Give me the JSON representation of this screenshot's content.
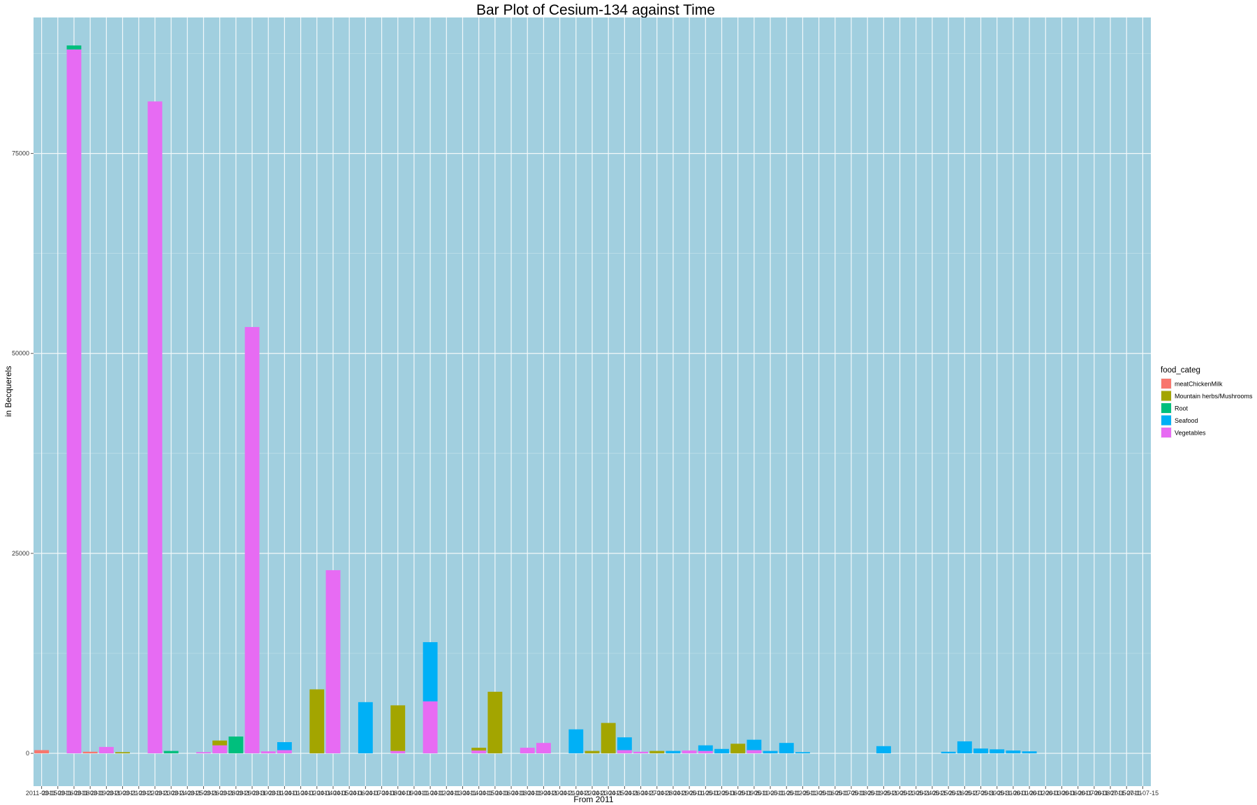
{
  "chart_data": {
    "type": "bar",
    "stacked": true,
    "title": "Bar Plot of Cesium-134 against Time",
    "xlabel": "From 2011",
    "ylabel": "in Becquerels",
    "ylim": [
      -4100,
      92000
    ],
    "y_ticks": [
      0,
      25000,
      50000,
      75000
    ],
    "grid": true,
    "legend_position": "right",
    "legend_title": "food_categ",
    "colors": {
      "meatChickenMilk": "#F8766D",
      "Mountain herbs/Mushrooms": "#A3A500",
      "Root": "#00BF7D",
      "Seafood": "#00B0F6",
      "Vegetables": "#E76BF3"
    },
    "x_tick_labels": [
      "2011-03-15",
      "2011-03-16",
      "2011-03-18",
      "2011-03-19",
      "2011-03-20",
      "2011-03-21",
      "2011-03-22",
      "2011-03-23",
      "2011-03-24",
      "2011-03-25",
      "2011-03-26",
      "2011-03-28",
      "2011-03-29",
      "2011-03-30",
      "2011-03-31",
      "2011-04-01",
      "2011-04-02",
      "2011-04-04",
      "2011-04-05",
      "2011-04-06",
      "2011-04-07",
      "2011-04-08",
      "2011-04-09",
      "2011-04-11",
      "2011-04-12",
      "2011-04-13",
      "2011-04-14",
      "2011-04-15",
      "2011-04-16",
      "2011-04-18",
      "2011-04-19",
      "2011-04-20",
      "2011-04-21",
      "2011-04-22",
      "2011-04-23",
      "2011-04-25",
      "2011-04-26",
      "2011-04-27",
      "2011-04-28",
      "2011-04-29",
      "2011-05-01",
      "2011-05-02",
      "2011-05-06",
      "2011-05-09",
      "2011-05-10",
      "2011-05-11",
      "2011-05-12",
      "2011-05-13",
      "2011-05-16",
      "2011-05-17",
      "2011-05-18",
      "2011-05-19",
      "2011-05-20",
      "2011-05-23",
      "2011-05-24",
      "2011-05-25",
      "2011-05-26",
      "2011-05-27",
      "2011-05-30",
      "2011-05-31",
      "2011-06-01",
      "2011-06-02",
      "2011-06-03",
      "2011-06-06",
      "2011-06-07",
      "2011-06-08",
      "2011-07-05",
      "2011-07-11",
      "2011-07-15"
    ],
    "categories": [
      "2011-03-15",
      "2011-03-16",
      "2011-03-18",
      "2011-03-19",
      "2011-03-20",
      "2011-03-21",
      "2011-03-22",
      "2011-03-23",
      "2011-03-24",
      "2011-03-25",
      "2011-03-26",
      "2011-03-28",
      "2011-03-29",
      "2011-03-30",
      "2011-03-31",
      "2011-04-01",
      "2011-04-02",
      "2011-04-04",
      "2011-04-05",
      "2011-04-06",
      "2011-04-07",
      "2011-04-08",
      "2011-04-09",
      "2011-04-11",
      "2011-04-12",
      "2011-04-13",
      "2011-04-14",
      "2011-04-15",
      "2011-04-16",
      "2011-04-18",
      "2011-04-19",
      "2011-04-20",
      "2011-04-21",
      "2011-04-22",
      "2011-04-23",
      "2011-04-25",
      "2011-04-26",
      "2011-04-27",
      "2011-04-28",
      "2011-04-29",
      "2011-05-01",
      "2011-05-02",
      "2011-05-06",
      "2011-05-09",
      "2011-05-10",
      "2011-05-11",
      "2011-05-12",
      "2011-05-13",
      "2011-05-16",
      "2011-05-17",
      "2011-05-18",
      "2011-05-19",
      "2011-05-20",
      "2011-05-23",
      "2011-05-24",
      "2011-05-25",
      "2011-05-26",
      "2011-05-27",
      "2011-05-30",
      "2011-05-31",
      "2011-06-01",
      "2011-06-02",
      "2011-06-03",
      "2011-06-06",
      "2011-06-07",
      "2011-06-08",
      "2011-07-05",
      "2011-07-11",
      "2011-07-15"
    ],
    "series": [
      {
        "name": "meatChickenMilk",
        "values": [
          400,
          0,
          0,
          200,
          0,
          0,
          0,
          0,
          0,
          0,
          0,
          0,
          0,
          0,
          0,
          0,
          0,
          0,
          0,
          0,
          0,
          0,
          0,
          0,
          0,
          0,
          0,
          0,
          0,
          0,
          0,
          0,
          0,
          0,
          0,
          0,
          0,
          0,
          0,
          0,
          0,
          0,
          0,
          0,
          0,
          0,
          0,
          0,
          0,
          0,
          0,
          0,
          0,
          0,
          0,
          0,
          0,
          0,
          0,
          0,
          0,
          0,
          0,
          0,
          0,
          0,
          0,
          0,
          0
        ]
      },
      {
        "name": "Mountain herbs/Mushrooms",
        "values": [
          0,
          0,
          0,
          0,
          0,
          150,
          0,
          0,
          0,
          0,
          0,
          600,
          0,
          0,
          0,
          0,
          0,
          8000,
          0,
          0,
          0,
          0,
          5700,
          0,
          0,
          0,
          0,
          350,
          7700,
          0,
          0,
          0,
          0,
          0,
          300,
          3800,
          0,
          0,
          300,
          0,
          0,
          0,
          0,
          1200,
          0,
          0,
          0,
          0,
          0,
          0,
          0,
          0,
          0,
          0,
          0,
          0,
          0,
          0,
          0,
          0,
          0,
          0,
          0,
          0,
          0,
          0,
          0,
          0,
          0
        ]
      },
      {
        "name": "Root",
        "values": [
          0,
          0,
          500,
          0,
          0,
          0,
          0,
          0,
          300,
          0,
          0,
          0,
          2100,
          0,
          0,
          0,
          0,
          0,
          0,
          0,
          0,
          0,
          0,
          0,
          0,
          0,
          0,
          0,
          0,
          0,
          0,
          0,
          0,
          0,
          0,
          0,
          0,
          0,
          0,
          0,
          0,
          0,
          0,
          0,
          0,
          0,
          0,
          0,
          0,
          0,
          0,
          0,
          0,
          0,
          0,
          0,
          0,
          0,
          0,
          0,
          0,
          0,
          0,
          0,
          0,
          0,
          0,
          0,
          0
        ]
      },
      {
        "name": "Seafood",
        "values": [
          0,
          0,
          0,
          0,
          0,
          0,
          0,
          0,
          0,
          0,
          0,
          0,
          0,
          0,
          0,
          1000,
          0,
          0,
          0,
          0,
          6400,
          0,
          0,
          0,
          7400,
          0,
          0,
          0,
          0,
          0,
          0,
          0,
          0,
          3000,
          0,
          0,
          1600,
          0,
          0,
          300,
          0,
          700,
          550,
          0,
          1300,
          300,
          1300,
          150,
          0,
          0,
          0,
          0,
          900,
          0,
          0,
          0,
          200,
          1500,
          600,
          500,
          350,
          250,
          0,
          0,
          0,
          0,
          0,
          0,
          0
        ]
      },
      {
        "name": "Vegetables",
        "values": [
          0,
          0,
          88000,
          0,
          800,
          0,
          0,
          81500,
          0,
          0,
          150,
          1000,
          0,
          53300,
          250,
          400,
          0,
          0,
          22900,
          0,
          0,
          0,
          300,
          0,
          6500,
          0,
          0,
          350,
          0,
          0,
          700,
          1300,
          0,
          0,
          0,
          0,
          400,
          200,
          0,
          0,
          350,
          300,
          0,
          0,
          400,
          0,
          0,
          0,
          0,
          0,
          0,
          0,
          0,
          0,
          0,
          0,
          0,
          0,
          0,
          0,
          0,
          0,
          0,
          0,
          0,
          0,
          0,
          0,
          0
        ]
      }
    ]
  }
}
